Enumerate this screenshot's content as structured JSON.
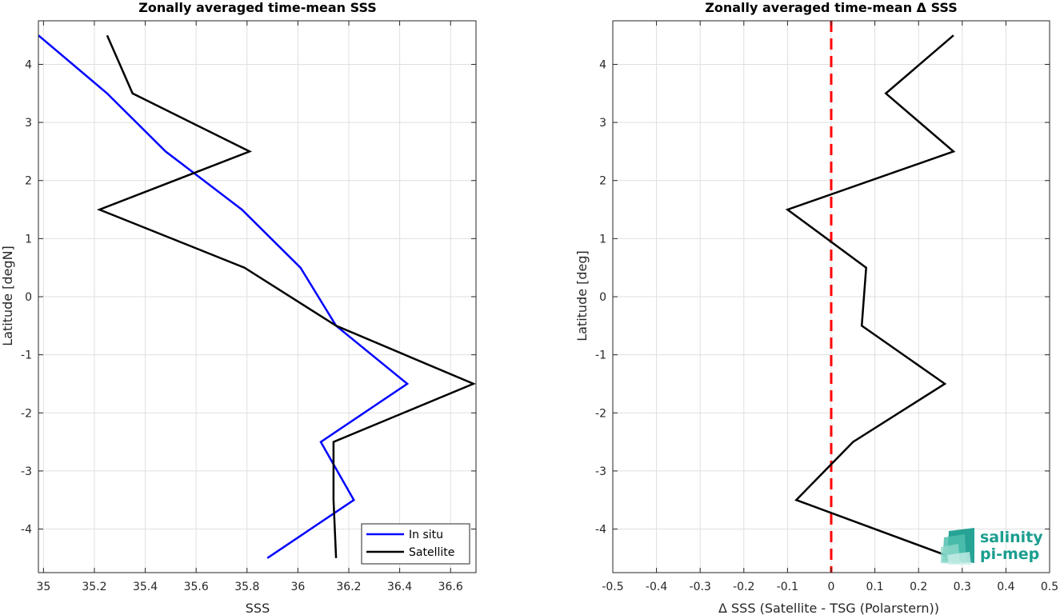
{
  "chart_data": [
    {
      "type": "line",
      "title": "Zonally averaged time-mean SSS",
      "xlabel": "SSS",
      "ylabel": "Latitude [degN]",
      "xlim": [
        34.98,
        36.7
      ],
      "ylim": [
        -4.75,
        4.75
      ],
      "xticks": [
        35,
        35.2,
        35.4,
        35.6,
        35.8,
        36,
        36.2,
        36.4,
        36.6
      ],
      "xtick_labels": [
        "35",
        "35.2",
        "35.4",
        "35.6",
        "35.8",
        "36",
        "36.2",
        "36.4",
        "36.6"
      ],
      "yticks": [
        -4,
        -3,
        -2,
        -1,
        0,
        1,
        2,
        3,
        4
      ],
      "ytick_labels": [
        "-4",
        "-3",
        "-2",
        "-1",
        "0",
        "1",
        "2",
        "3",
        "4"
      ],
      "grid": true,
      "legend": {
        "placement": "bottom-right",
        "entries": [
          "In situ",
          "Satellite"
        ]
      },
      "series": [
        {
          "name": "In situ",
          "color": "#0000ff",
          "x": [
            34.98,
            35.25,
            35.48,
            35.78,
            36.01,
            36.15,
            36.43,
            36.09,
            36.22,
            35.88
          ],
          "y": [
            4.5,
            3.5,
            2.5,
            1.5,
            0.5,
            -0.5,
            -1.5,
            -2.5,
            -3.5,
            -4.5
          ]
        },
        {
          "name": "Satellite",
          "color": "#000000",
          "x": [
            35.25,
            35.35,
            35.81,
            35.22,
            35.79,
            36.15,
            36.69,
            36.14,
            36.14,
            36.15
          ],
          "y": [
            4.5,
            3.5,
            2.5,
            1.5,
            0.5,
            -0.5,
            -1.5,
            -2.5,
            -3.5,
            -4.5
          ]
        }
      ]
    },
    {
      "type": "line",
      "title": "Zonally averaged time-mean Δ SSS",
      "xlabel": "Δ SSS (Satellite - TSG (Polarstern))",
      "ylabel": "Latitude [deg]",
      "xlim": [
        -0.5,
        0.5
      ],
      "ylim": [
        -4.75,
        4.75
      ],
      "xticks": [
        -0.5,
        -0.4,
        -0.3,
        -0.2,
        -0.1,
        0,
        0.1,
        0.2,
        0.3,
        0.4,
        0.5
      ],
      "xtick_labels": [
        "-0.5",
        "-0.4",
        "-0.3",
        "-0.2",
        "-0.1",
        "0",
        "0.1",
        "0.2",
        "0.3",
        "0.4",
        "0.5"
      ],
      "yticks": [
        -4,
        -3,
        -2,
        -1,
        0,
        1,
        2,
        3,
        4
      ],
      "ytick_labels": [
        "-4",
        "-3",
        "-2",
        "-1",
        "0",
        "1",
        "2",
        "3",
        "4"
      ],
      "grid": true,
      "reference_line": {
        "x": 0,
        "color": "#ff0000",
        "style": "dashed"
      },
      "series": [
        {
          "color": "#000000",
          "x": [
            0.28,
            0.125,
            0.28,
            -0.1,
            0.08,
            0.07,
            0.26,
            0.05,
            -0.08,
            0.28
          ],
          "y": [
            4.5,
            3.5,
            2.5,
            1.5,
            0.5,
            -0.5,
            -1.5,
            -2.5,
            -3.5,
            -4.5
          ]
        }
      ]
    }
  ],
  "logo": {
    "line1": "salinity",
    "line2": "pi-mep",
    "color": "#1b9e8f"
  }
}
